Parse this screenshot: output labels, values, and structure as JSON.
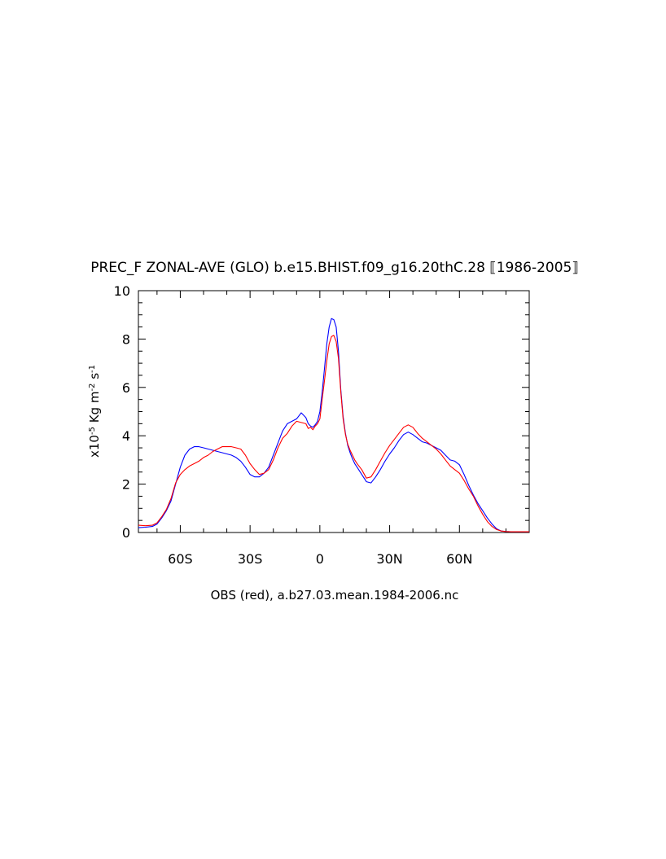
{
  "chart_data": {
    "type": "line",
    "title": "PREC_F ZONAL-AVE (GLO) b.e15.BHIST.f09_g16.20thC.28  ⟦1986-2005⟧",
    "xlabel": "OBS (red), a.b27.03.mean.1984-2006.nc",
    "ylabel": {
      "prefix": "x10",
      "prefix_exp": "-5",
      "kg": " Kg m",
      "m_exp": "-2",
      "s": " s",
      "s_exp": "-1"
    },
    "xlim": [
      -78,
      90
    ],
    "ylim": [
      0,
      10
    ],
    "x_ticks": [
      {
        "value": -60,
        "label": "60S"
      },
      {
        "value": -30,
        "label": "30S"
      },
      {
        "value": 0,
        "label": "0"
      },
      {
        "value": 30,
        "label": "30N"
      },
      {
        "value": 60,
        "label": "60N"
      }
    ],
    "y_ticks": [
      {
        "value": 0,
        "label": "0"
      },
      {
        "value": 2,
        "label": "2"
      },
      {
        "value": 4,
        "label": "4"
      },
      {
        "value": 6,
        "label": "6"
      },
      {
        "value": 8,
        "label": "8"
      },
      {
        "value": 10,
        "label": "10"
      }
    ],
    "grid": false,
    "series": [
      {
        "color": "#0000ff",
        "x": [
          -78,
          -75,
          -72,
          -70,
          -68,
          -66,
          -64,
          -62,
          -60,
          -58,
          -56,
          -54,
          -52,
          -50,
          -48,
          -46,
          -44,
          -42,
          -40,
          -38,
          -36,
          -34,
          -32,
          -30,
          -28,
          -26,
          -24,
          -22,
          -20,
          -18,
          -16,
          -14,
          -12,
          -10,
          -8,
          -6,
          -5,
          -4,
          -3,
          -2,
          -1,
          0,
          1,
          2,
          3,
          4,
          5,
          6,
          7,
          8,
          9,
          10,
          11,
          12,
          13,
          14,
          15,
          16,
          18,
          20,
          22,
          24,
          26,
          28,
          30,
          32,
          34,
          36,
          38,
          40,
          42,
          44,
          46,
          48,
          50,
          52,
          54,
          56,
          58,
          60,
          62,
          64,
          66,
          68,
          70,
          72,
          74,
          76,
          78,
          80,
          82,
          84,
          86,
          88,
          90
        ],
        "y": [
          0.2,
          0.22,
          0.25,
          0.35,
          0.6,
          0.9,
          1.3,
          2.0,
          2.7,
          3.2,
          3.45,
          3.55,
          3.55,
          3.5,
          3.45,
          3.4,
          3.35,
          3.3,
          3.25,
          3.2,
          3.1,
          2.95,
          2.7,
          2.4,
          2.3,
          2.3,
          2.45,
          2.7,
          3.2,
          3.7,
          4.2,
          4.5,
          4.6,
          4.7,
          4.95,
          4.75,
          4.5,
          4.4,
          4.35,
          4.45,
          4.6,
          5.0,
          5.8,
          6.8,
          7.8,
          8.5,
          8.85,
          8.8,
          8.5,
          7.5,
          5.9,
          4.8,
          4.1,
          3.6,
          3.3,
          3.05,
          2.85,
          2.7,
          2.4,
          2.1,
          2.05,
          2.3,
          2.6,
          2.95,
          3.25,
          3.5,
          3.8,
          4.05,
          4.15,
          4.05,
          3.9,
          3.75,
          3.7,
          3.6,
          3.5,
          3.4,
          3.2,
          3.0,
          2.95,
          2.8,
          2.4,
          1.95,
          1.55,
          1.2,
          0.9,
          0.6,
          0.35,
          0.15,
          0.06,
          0.04,
          0.03,
          0.03,
          0.03,
          0.03,
          0.03
        ]
      },
      {
        "color": "#ff0000",
        "x": [
          -78,
          -75,
          -72,
          -70,
          -68,
          -66,
          -64,
          -62,
          -60,
          -58,
          -56,
          -54,
          -52,
          -50,
          -48,
          -46,
          -44,
          -42,
          -40,
          -38,
          -36,
          -34,
          -32,
          -30,
          -28,
          -26,
          -24,
          -22,
          -20,
          -18,
          -16,
          -14,
          -12,
          -10,
          -8,
          -6,
          -5,
          -4,
          -3,
          -2,
          -1,
          0,
          1,
          2,
          3,
          4,
          5,
          6,
          7,
          8,
          9,
          10,
          11,
          12,
          13,
          14,
          15,
          16,
          18,
          20,
          22,
          24,
          26,
          28,
          30,
          32,
          34,
          36,
          38,
          40,
          42,
          44,
          46,
          48,
          50,
          52,
          54,
          56,
          58,
          60,
          62,
          64,
          66,
          68,
          70,
          72,
          74,
          76,
          78,
          80,
          82,
          84,
          86,
          88,
          90
        ],
        "y": [
          0.3,
          0.28,
          0.3,
          0.4,
          0.65,
          0.95,
          1.4,
          2.05,
          2.4,
          2.6,
          2.75,
          2.85,
          2.95,
          3.1,
          3.2,
          3.35,
          3.45,
          3.55,
          3.55,
          3.55,
          3.5,
          3.45,
          3.2,
          2.85,
          2.6,
          2.4,
          2.45,
          2.6,
          3.0,
          3.5,
          3.9,
          4.1,
          4.4,
          4.6,
          4.55,
          4.5,
          4.3,
          4.35,
          4.25,
          4.4,
          4.5,
          4.7,
          5.5,
          6.3,
          7.1,
          7.8,
          8.1,
          8.15,
          7.9,
          7.2,
          5.8,
          4.7,
          4.05,
          3.65,
          3.4,
          3.2,
          3.0,
          2.85,
          2.6,
          2.25,
          2.3,
          2.6,
          2.95,
          3.3,
          3.6,
          3.85,
          4.1,
          4.35,
          4.45,
          4.35,
          4.1,
          3.9,
          3.75,
          3.6,
          3.45,
          3.25,
          3.0,
          2.75,
          2.6,
          2.45,
          2.15,
          1.8,
          1.5,
          1.1,
          0.75,
          0.45,
          0.25,
          0.12,
          0.06,
          0.04,
          0.03,
          0.03,
          0.03,
          0.03,
          0.03
        ]
      }
    ]
  }
}
